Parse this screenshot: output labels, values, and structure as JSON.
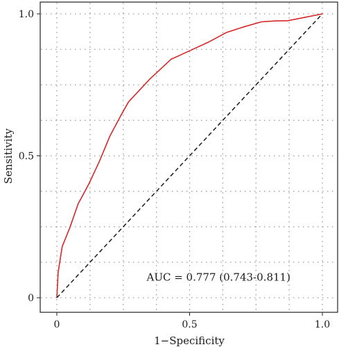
{
  "chart_data": {
    "type": "line",
    "xlabel": "1−Specificity",
    "ylabel": "Sensitivity",
    "xlim": [
      0,
      1
    ],
    "ylim": [
      0,
      1
    ],
    "x_ticks": [
      0,
      0.5,
      1.0
    ],
    "y_ticks": [
      0,
      0.5,
      1.0
    ],
    "x_tick_labels": [
      "0",
      "0.5",
      "1.0"
    ],
    "y_tick_labels": [
      "0",
      "0.5",
      "1.0"
    ],
    "grid": true,
    "grid_step": 0.125,
    "series": [
      {
        "color": "#d62728",
        "style": "solid",
        "x": [
          0,
          0.005,
          0.02,
          0.05,
          0.08,
          0.12,
          0.16,
          0.2,
          0.24,
          0.27,
          0.35,
          0.43,
          0.5,
          0.57,
          0.64,
          0.7,
          0.77,
          0.82,
          0.87,
          0.93,
          1.0
        ],
        "y": [
          0,
          0.09,
          0.18,
          0.25,
          0.33,
          0.4,
          0.48,
          0.57,
          0.64,
          0.69,
          0.77,
          0.84,
          0.87,
          0.9,
          0.935,
          0.953,
          0.972,
          0.975,
          0.976,
          0.987,
          1.0
        ]
      },
      {
        "color": "#1a1a1a",
        "style": "dashed",
        "x": [
          0,
          1
        ],
        "y": [
          0,
          1
        ]
      }
    ],
    "annotations": [
      {
        "text": "AUC = 0.777 (0.743-0.811)",
        "x": 0.5,
        "y": 0.06
      }
    ]
  }
}
